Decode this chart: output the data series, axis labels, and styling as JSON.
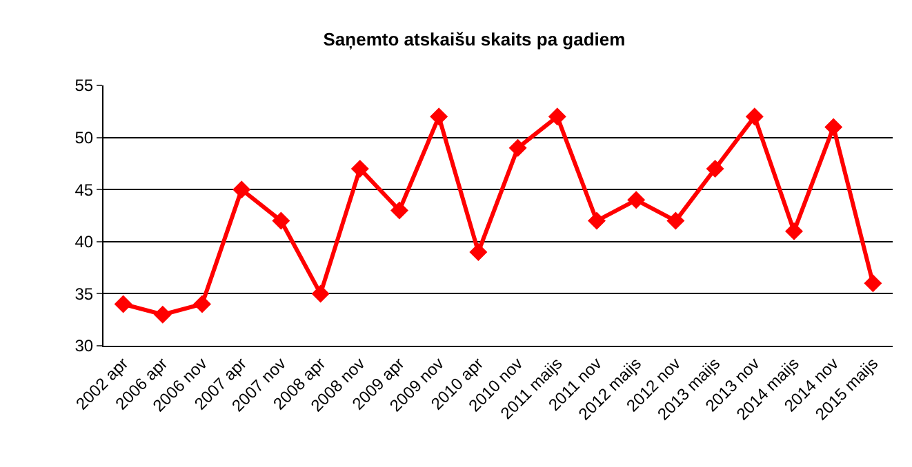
{
  "chart_data": {
    "type": "line",
    "title": "Saņemto atskaišu skaits pa gadiem",
    "categories": [
      "2002 apr",
      "2006 apr",
      "2006 nov",
      "2007 apr",
      "2007 nov",
      "2008 apr",
      "2008 nov",
      "2009 apr",
      "2009 nov",
      "2010 apr",
      "2010 nov",
      "2011 maijs",
      "2011 nov",
      "2012 maijs",
      "2012 nov",
      "2013 maijs",
      "2013 nov",
      "2014 maijs",
      "2014 nov",
      "2015 maijs"
    ],
    "series": [
      {
        "color": "#ff0000",
        "values": [
          34,
          33,
          34,
          45,
          42,
          35,
          47,
          43,
          52,
          39,
          49,
          52,
          42,
          44,
          42,
          47,
          52,
          41,
          51,
          36
        ]
      }
    ],
    "ylim": [
      30,
      55
    ],
    "yticks": [
      30,
      35,
      40,
      45,
      50,
      55
    ],
    "grid": "y",
    "marker": "diamond",
    "line_style": "solid"
  }
}
